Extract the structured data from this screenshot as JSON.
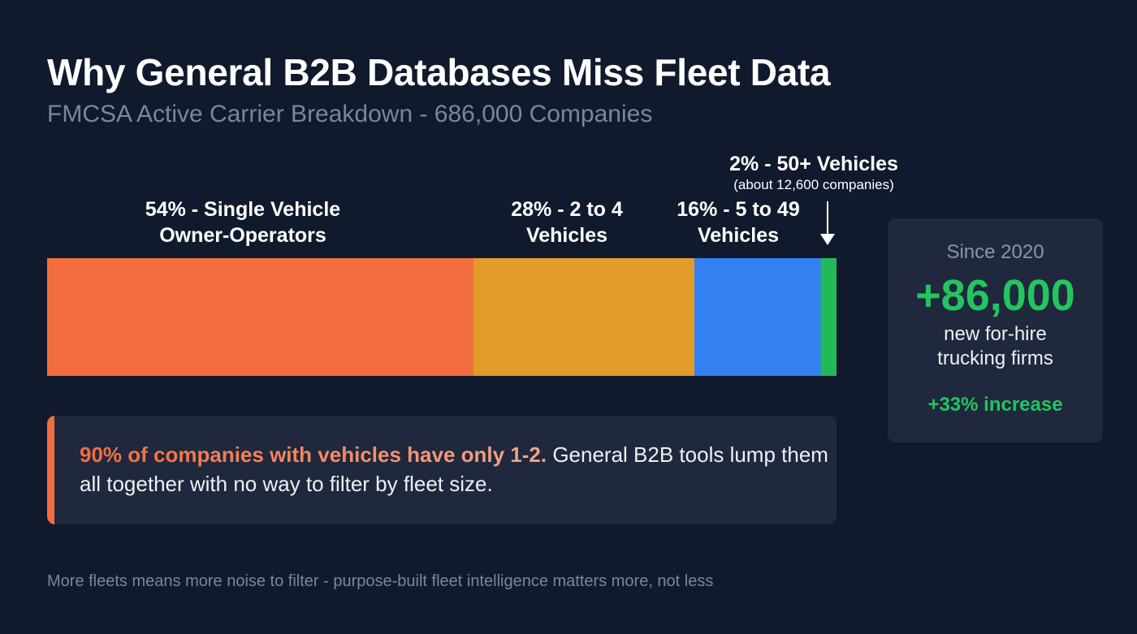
{
  "header": {
    "title": "Why General B2B Databases Miss Fleet Data",
    "subtitle": "FMCSA Active Carrier Breakdown - 686,000 Companies"
  },
  "chart_data": {
    "type": "bar",
    "orientation": "horizontal-stacked",
    "title": "Why General B2B Databases Miss Fleet Data",
    "subtitle": "FMCSA Active Carrier Breakdown - 686,000 Companies",
    "unit": "%",
    "categories": [
      "Single Vehicle Owner-Operators",
      "2 to 4 Vehicles",
      "5 to 49 Vehicles",
      "50+ Vehicles"
    ],
    "values": [
      54,
      28,
      16,
      2
    ],
    "colors": [
      "#f26d3d",
      "#e29c2a",
      "#3380f0",
      "#22b95a"
    ],
    "labels": [
      {
        "line1": "54% - Single Vehicle",
        "line2": "Owner-Operators"
      },
      {
        "line1": "28% - 2 to 4",
        "line2": "Vehicles"
      },
      {
        "line1": "16% - 5 to 49",
        "line2": "Vehicles"
      },
      {
        "line1": "2% - 50+ Vehicles",
        "note": "(about 12,600 companies)"
      }
    ]
  },
  "callout": {
    "highlight": "90% of companies with vehicles have only 1-2.",
    "text": " General B2B tools lump them all together with no way to filter by fleet size.",
    "accent_color": "#f26d3d"
  },
  "stat_card": {
    "since": "Since 2020",
    "value": "+86,000",
    "desc_line1": "new for-hire",
    "desc_line2": "trucking firms",
    "increase": "+33% increase",
    "color": "#22c55e"
  },
  "footer": "More fleets means more noise to filter - purpose-built fleet intelligence matters more, not less"
}
